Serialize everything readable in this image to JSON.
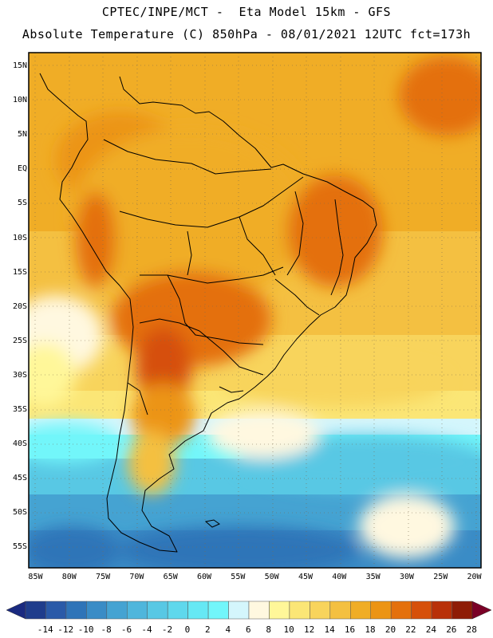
{
  "header": {
    "line1": "CPTEC/INPE/MCT -  Eta Model 15km - GFS",
    "line2": "Absolute Temperature (C) 850hPa - 08/01/2021 12UTC fct=173h"
  },
  "map": {
    "lon_range": [
      -86,
      -19
    ],
    "lat_range": [
      -58,
      17
    ],
    "lat_ticks": [
      "15N",
      "10N",
      "5N",
      "EQ",
      "5S",
      "10S",
      "15S",
      "20S",
      "25S",
      "30S",
      "35S",
      "40S",
      "45S",
      "50S",
      "55S"
    ],
    "lat_values": [
      15,
      10,
      5,
      0,
      -5,
      -10,
      -15,
      -20,
      -25,
      -30,
      -35,
      -40,
      -45,
      -50,
      -55
    ],
    "lon_ticks": [
      "85W",
      "80W",
      "75W",
      "70W",
      "65W",
      "60W",
      "55W",
      "50W",
      "45W",
      "40W",
      "35W",
      "30W",
      "25W",
      "20W"
    ],
    "lon_values": [
      -85,
      -80,
      -75,
      -70,
      -65,
      -60,
      -55,
      -50,
      -45,
      -40,
      -35,
      -30,
      -25,
      -20
    ]
  },
  "colorbar": {
    "labels": [
      "-14",
      "-12",
      "-10",
      "-8",
      "-6",
      "-4",
      "-2",
      "0",
      "2",
      "4",
      "6",
      "8",
      "10",
      "12",
      "14",
      "16",
      "18",
      "20",
      "22",
      "24",
      "26",
      "28"
    ],
    "colors": [
      "#1f3d8c",
      "#2a5aa8",
      "#2f74b8",
      "#3a8cc6",
      "#45a3d2",
      "#4fb6dc",
      "#58c8e4",
      "#5fd8ec",
      "#66e8f4",
      "#72f6fa",
      "#d4f6fc",
      "#fff8e0",
      "#fff799",
      "#fbe676",
      "#f8d45c",
      "#f4c041",
      "#f0ad26",
      "#ec9414",
      "#e4700c",
      "#d6500a",
      "#b83008",
      "#8e1c06"
    ],
    "end_low": "#1a2a80",
    "end_high": "#7a0026"
  }
}
